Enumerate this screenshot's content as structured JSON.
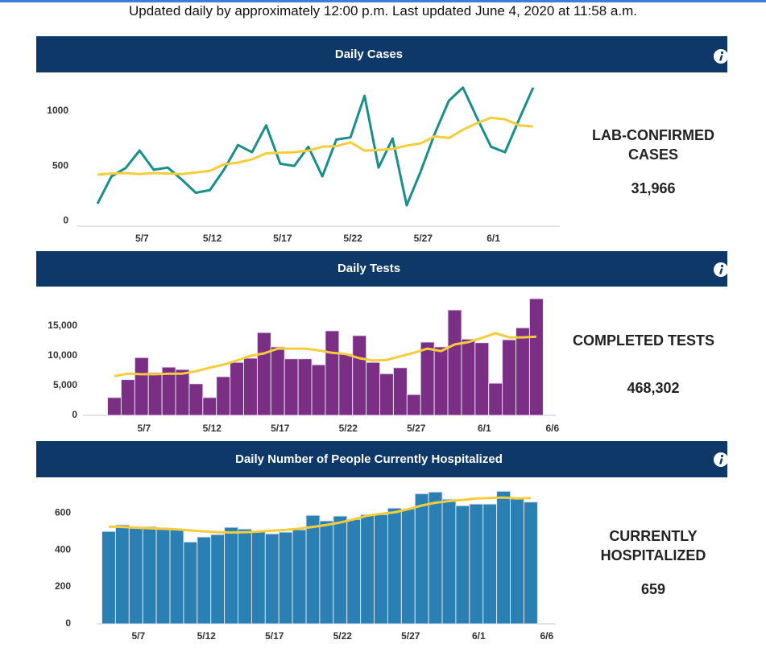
{
  "header": {
    "text": "Updated daily by approximately 12:00 p.m. Last updated June 4, 2020 at 11:58 a.m."
  },
  "chart_data": [
    {
      "type": "line",
      "title": "Daily Cases",
      "categories": [
        null,
        null,
        null,
        "5/7",
        null,
        null,
        null,
        null,
        "5/12",
        null,
        null,
        null,
        null,
        "5/17",
        null,
        null,
        null,
        null,
        "5/22",
        null,
        null,
        null,
        null,
        "5/27",
        null,
        null,
        null,
        null,
        "6/1",
        null,
        null,
        null
      ],
      "series": [
        {
          "type": "line",
          "color": "#1a8f8a",
          "values": [
            155,
            405,
            480,
            640,
            465,
            485,
            375,
            255,
            280,
            465,
            690,
            625,
            870,
            520,
            500,
            675,
            405,
            740,
            760,
            1140,
            485,
            750,
            140,
            450,
            795,
            1095,
            1215,
            940,
            675,
            625,
            925,
            1215
          ]
        },
        {
          "type": "line",
          "color": "#f5cd3c",
          "values": [
            420,
            430,
            435,
            425,
            435,
            430,
            425,
            440,
            455,
            515,
            530,
            560,
            615,
            620,
            625,
            640,
            675,
            680,
            715,
            640,
            645,
            655,
            685,
            705,
            770,
            755,
            830,
            890,
            940,
            925,
            870,
            860
          ]
        }
      ],
      "ylim": [
        -50,
        1250
      ],
      "yticks": [
        0,
        500,
        1000
      ],
      "grid": false,
      "summary": {
        "label": "LAB-CONFIRMED CASES",
        "value": "31,966"
      }
    },
    {
      "type": "bar",
      "title": "Daily Tests",
      "categories": [
        null,
        null,
        "5/7",
        null,
        null,
        null,
        null,
        "5/12",
        null,
        null,
        null,
        null,
        "5/17",
        null,
        null,
        null,
        null,
        "5/22",
        null,
        null,
        null,
        null,
        "5/27",
        null,
        null,
        null,
        null,
        "6/1",
        null,
        null,
        null,
        null,
        "6/6"
      ],
      "series": [
        {
          "type": "bar",
          "color": "#7a2e84",
          "values": [
            3000,
            6000,
            9700,
            7200,
            8100,
            7700,
            5300,
            3000,
            6500,
            8900,
            9600,
            13900,
            11500,
            9500,
            9500,
            8500,
            14200,
            10300,
            13400,
            8900,
            7000,
            8000,
            3500,
            12300,
            11500,
            17700,
            12800,
            12200,
            5400,
            12700,
            14700,
            19600,
            null
          ]
        },
        {
          "type": "line",
          "color": "#f5cd3c",
          "values": [
            6600,
            7000,
            6900,
            6900,
            7000,
            7000,
            7400,
            8000,
            8500,
            9200,
            10000,
            10400,
            11200,
            11200,
            11200,
            10900,
            10500,
            10300,
            9600,
            9200,
            9300,
            9900,
            10500,
            11200,
            10800,
            11900,
            12300,
            13000,
            13800,
            13100,
            13100,
            13200,
            null
          ]
        }
      ],
      "ylim": [
        0,
        20000
      ],
      "yticks": [
        0,
        {
          "value": 5000,
          "label": "5,000"
        },
        {
          "value": 10000,
          "label": "10,000"
        },
        {
          "value": 15000,
          "label": "15,000"
        }
      ],
      "grid": false,
      "summary": {
        "label": "COMPLETED TESTS",
        "value": "468,302"
      }
    },
    {
      "type": "bar",
      "title": "Daily Number of People Currently Hospitalized",
      "categories": [
        null,
        null,
        "5/7",
        null,
        null,
        null,
        null,
        "5/12",
        null,
        null,
        null,
        null,
        "5/17",
        null,
        null,
        null,
        null,
        "5/22",
        null,
        null,
        null,
        null,
        "5/27",
        null,
        null,
        null,
        null,
        "6/1",
        null,
        null,
        null,
        null,
        "6/6"
      ],
      "series": [
        {
          "type": "bar",
          "color": "#2a80b2",
          "values": [
            500,
            535,
            517,
            526,
            513,
            513,
            443,
            470,
            483,
            522,
            513,
            500,
            487,
            496,
            509,
            587,
            557,
            583,
            565,
            591,
            591,
            626,
            622,
            704,
            713,
            674,
            639,
            648,
            648,
            717,
            678,
            659,
            null
          ]
        },
        {
          "type": "line",
          "color": "#f5cd3c",
          "values": [
            526,
            524,
            520,
            517,
            514,
            511,
            505,
            500,
            496,
            494,
            496,
            499,
            504,
            508,
            515,
            524,
            535,
            548,
            565,
            585,
            595,
            603,
            620,
            640,
            655,
            664,
            670,
            678,
            681,
            683,
            678,
            680,
            null
          ]
        }
      ],
      "ylim": [
        0,
        740
      ],
      "yticks": [
        0,
        200,
        400,
        600
      ],
      "grid": false,
      "summary": {
        "label": "CURRENTLY HOSPITALIZED",
        "value": "659"
      }
    }
  ]
}
